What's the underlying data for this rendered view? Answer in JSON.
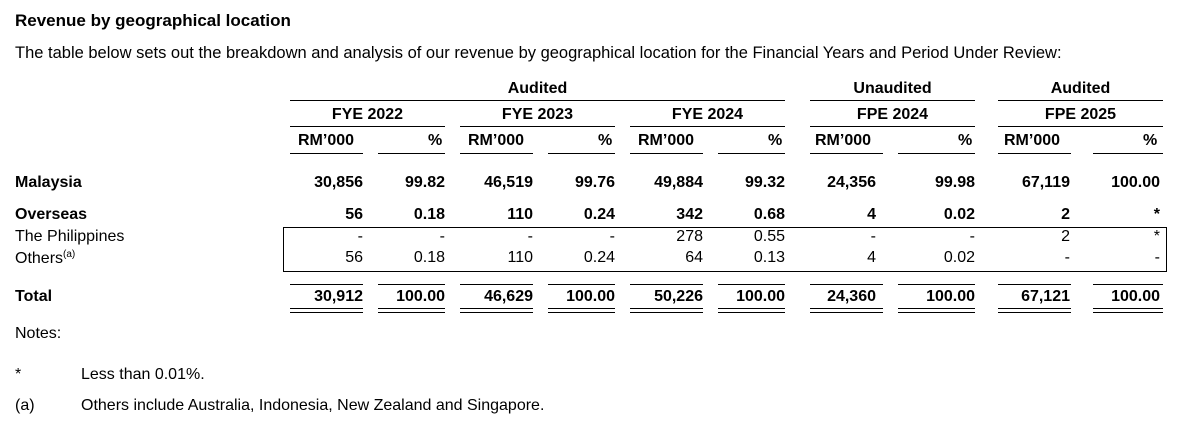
{
  "heading": "Revenue by geographical location",
  "intro": "The table below sets out the breakdown and analysis of our revenue by geographical location for the Financial Years and Period Under Review:",
  "groups": [
    {
      "label": "Audited"
    },
    {
      "label": "Unaudited"
    },
    {
      "label": "Audited"
    }
  ],
  "periods": [
    "FYE 2022",
    "FYE 2023",
    "FYE 2024",
    "FPE 2024",
    "FPE 2025"
  ],
  "col_headers": {
    "amount": "RM’000",
    "pct": "%"
  },
  "rows": [
    {
      "label": "Malaysia",
      "values": [
        "30,856",
        "99.82",
        "46,519",
        "99.76",
        "49,884",
        "99.32",
        "24,356",
        "99.98",
        "67,119",
        "100.00"
      ]
    },
    {
      "label": "Overseas",
      "values": [
        "56",
        "0.18",
        "110",
        "0.24",
        "342",
        "0.68",
        "4",
        "0.02",
        "2",
        "*"
      ]
    },
    {
      "label": "The Philippines",
      "values": [
        "-",
        "-",
        "-",
        "-",
        "278",
        "0.55",
        "-",
        "-",
        "2",
        "*"
      ]
    },
    {
      "label": "Others",
      "label_sup": "(a)",
      "values": [
        "56",
        "0.18",
        "110",
        "0.24",
        "64",
        "0.13",
        "4",
        "0.02",
        "-",
        "-"
      ]
    },
    {
      "label": "Total",
      "values": [
        "30,912",
        "100.00",
        "46,629",
        "100.00",
        "50,226",
        "100.00",
        "24,360",
        "100.00",
        "67,121",
        "100.00"
      ]
    }
  ],
  "notes_heading": "Notes:",
  "notes": [
    {
      "mark": "*",
      "text": "Less than 0.01%."
    },
    {
      "mark": "(a)",
      "text": "Others include Australia, Indonesia, New Zealand and Singapore."
    }
  ]
}
